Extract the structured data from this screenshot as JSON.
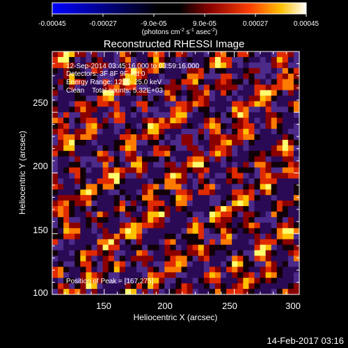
{
  "chart_data": {
    "type": "heatmap",
    "title": "Reconstructed RHESSI Image",
    "xlabel": "Heliocentric X (arcsec)",
    "ylabel": "Heliocentric Y (arcsec)",
    "xlim": [
      110,
      300
    ],
    "ylim": [
      100,
      300
    ],
    "x_ticks": [
      "150",
      "200",
      "250",
      "300"
    ],
    "y_ticks": [
      "100",
      "150",
      "200",
      "250"
    ],
    "colorbar": {
      "range": [
        -0.00045,
        0.00045
      ],
      "tick_labels": [
        "-0.00045",
        "-0.00027",
        "-9.0e-05",
        "9.0e-05",
        "0.00027",
        "0.00045"
      ],
      "unit_label": "(photons cm",
      "unit_exp1": "-2",
      "unit_mid": " s",
      "unit_exp2": "-1",
      "unit_mid2": " asec",
      "unit_exp3": "-2",
      "unit_end": ")"
    },
    "annotations": {
      "time": "12-Sep-2014 03:45:16.000 to 03:59:16.000",
      "detectors": "Detectors: 3F 8F 9F, Att 0",
      "energy": "Energy Range: 12.0 - 25.0 keV",
      "method": "Clean    Total counts: 5.32E+03",
      "peak": "Position of Peak = [167,275]"
    },
    "peak_position": [
      167,
      275
    ],
    "grid": false
  },
  "footer": {
    "timestamp": "14-Feb-2017 03:16"
  }
}
